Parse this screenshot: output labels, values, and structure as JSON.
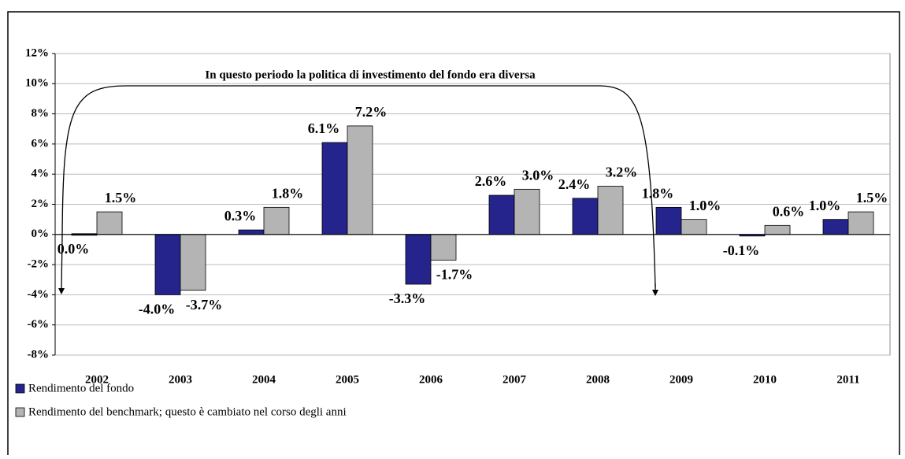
{
  "chart_data": {
    "type": "bar",
    "annotation": "In questo periodo la politica di investimento del fondo era diversa",
    "categories": [
      "2002",
      "2003",
      "2004",
      "2005",
      "2006",
      "2007",
      "2008",
      "2009",
      "2010",
      "2011"
    ],
    "series": [
      {
        "name": "Rendimento del fondo",
        "color": "#24248c",
        "values": [
          0.0,
          -4.0,
          0.3,
          6.1,
          -3.3,
          2.6,
          2.4,
          1.8,
          -0.1,
          1.0
        ],
        "value_labels": [
          "0.0%",
          "-4.0%",
          "0.3%",
          "6.1%",
          "-3.3%",
          "2.6%",
          "2.4%",
          "1.8%",
          "-0.1%",
          "1.0%"
        ]
      },
      {
        "name": "Rendimento del benchmark; questo è cambiato nel corso degli anni",
        "color": "#b4b4b4",
        "values": [
          1.5,
          -3.7,
          1.8,
          7.2,
          -1.7,
          3.0,
          3.2,
          1.0,
          0.6,
          1.5
        ],
        "value_labels": [
          "1.5%",
          "-3.7%",
          "1.8%",
          "7.2%",
          "-1.7%",
          "3.0%",
          "3.2%",
          "1.0%",
          "0.6%",
          "1.5%"
        ]
      }
    ],
    "ylim": [
      -8,
      12
    ],
    "yticks": [
      {
        "value": -8,
        "label": "-8%"
      },
      {
        "value": -6,
        "label": "-6%"
      },
      {
        "value": -4,
        "label": "-4%"
      },
      {
        "value": -2,
        "label": "-2%"
      },
      {
        "value": 0,
        "label": "0%"
      },
      {
        "value": 2,
        "label": "2%"
      },
      {
        "value": 4,
        "label": "4%"
      },
      {
        "value": 6,
        "label": "6%"
      },
      {
        "value": 8,
        "label": "8%"
      },
      {
        "value": 10,
        "label": "10%"
      },
      {
        "value": 12,
        "label": "12%"
      }
    ],
    "grid": true,
    "legend": "bottom-left"
  }
}
